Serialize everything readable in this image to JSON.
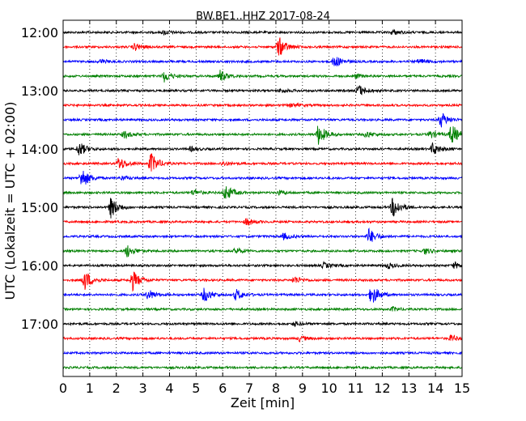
{
  "chart_data": {
    "type": "line",
    "title": "BW.BE1..HHZ 2017-08-24",
    "xlabel": "Zeit  [min]",
    "ylabel": "UTC (Lokalzeit = UTC + 02:00)",
    "xlim": [
      0,
      15
    ],
    "x_ticks": [
      "0",
      "1",
      "2",
      "3",
      "4",
      "5",
      "6",
      "7",
      "8",
      "9",
      "10",
      "11",
      "12",
      "13",
      "14",
      "15"
    ],
    "y_tick_labels": [
      "12:00",
      "13:00",
      "14:00",
      "15:00",
      "16:00",
      "17:00"
    ],
    "grid": "vertical dotted",
    "trace_colors": [
      "#000000",
      "#ff0000",
      "#0000ff",
      "#008000"
    ],
    "traces": [
      {
        "start": "12:00",
        "events": [
          [
            3.8,
            0.2
          ],
          [
            12.4,
            0.25
          ]
        ]
      },
      {
        "start": "12:15",
        "events": [
          [
            2.7,
            0.35
          ],
          [
            8.1,
            1.0
          ]
        ]
      },
      {
        "start": "12:30",
        "events": [
          [
            1.4,
            0.2
          ],
          [
            10.2,
            0.6
          ],
          [
            13.4,
            0.25
          ]
        ]
      },
      {
        "start": "12:45",
        "events": [
          [
            3.8,
            0.55
          ],
          [
            5.9,
            0.55
          ],
          [
            11.0,
            0.2
          ]
        ]
      },
      {
        "start": "13:00",
        "events": [
          [
            8.2,
            0.2
          ],
          [
            11.1,
            0.55
          ]
        ]
      },
      {
        "start": "13:15",
        "events": [
          [
            8.6,
            0.2
          ]
        ]
      },
      {
        "start": "13:30",
        "events": [
          [
            14.2,
            0.75
          ]
        ]
      },
      {
        "start": "13:45",
        "events": [
          [
            2.3,
            0.35
          ],
          [
            9.6,
            1.0
          ],
          [
            11.4,
            0.3
          ],
          [
            13.8,
            0.35
          ],
          [
            14.6,
            1.0
          ]
        ]
      },
      {
        "start": "14:00",
        "events": [
          [
            0.6,
            0.7
          ],
          [
            4.8,
            0.2
          ],
          [
            13.9,
            0.6
          ]
        ]
      },
      {
        "start": "14:15",
        "events": [
          [
            2.1,
            0.65
          ],
          [
            3.3,
            1.0
          ],
          [
            6.0,
            0.2
          ]
        ]
      },
      {
        "start": "14:30",
        "events": [
          [
            0.7,
            1.0
          ],
          [
            2.2,
            0.2
          ]
        ]
      },
      {
        "start": "14:45",
        "events": [
          [
            4.9,
            0.3
          ],
          [
            6.1,
            0.8
          ],
          [
            8.1,
            0.2
          ]
        ]
      },
      {
        "start": "15:00",
        "events": [
          [
            1.8,
            1.0
          ],
          [
            12.4,
            1.0
          ]
        ]
      },
      {
        "start": "15:15",
        "events": [
          [
            6.9,
            0.35
          ]
        ]
      },
      {
        "start": "15:30",
        "events": [
          [
            8.3,
            0.3
          ],
          [
            11.5,
            0.75
          ]
        ]
      },
      {
        "start": "15:45",
        "events": [
          [
            2.4,
            0.6
          ],
          [
            6.5,
            0.3
          ],
          [
            13.6,
            0.3
          ]
        ]
      },
      {
        "start": "16:00",
        "events": [
          [
            14.7,
            0.3
          ],
          [
            9.8,
            0.25
          ],
          [
            12.2,
            0.25
          ]
        ]
      },
      {
        "start": "16:15",
        "events": [
          [
            0.8,
            1.0
          ],
          [
            2.6,
            1.0
          ],
          [
            8.7,
            0.35
          ]
        ]
      },
      {
        "start": "16:30",
        "events": [
          [
            3.2,
            0.5
          ],
          [
            5.3,
            0.7
          ],
          [
            6.5,
            0.55
          ],
          [
            11.6,
            1.0
          ]
        ]
      },
      {
        "start": "16:45",
        "events": [
          [
            12.4,
            0.2
          ]
        ]
      },
      {
        "start": "17:00",
        "events": [
          [
            8.7,
            0.2
          ]
        ]
      },
      {
        "start": "17:15",
        "events": [
          [
            8.9,
            0.25
          ],
          [
            14.6,
            0.3
          ]
        ]
      },
      {
        "start": "17:30",
        "events": []
      },
      {
        "start": "17:45",
        "events": []
      }
    ]
  }
}
